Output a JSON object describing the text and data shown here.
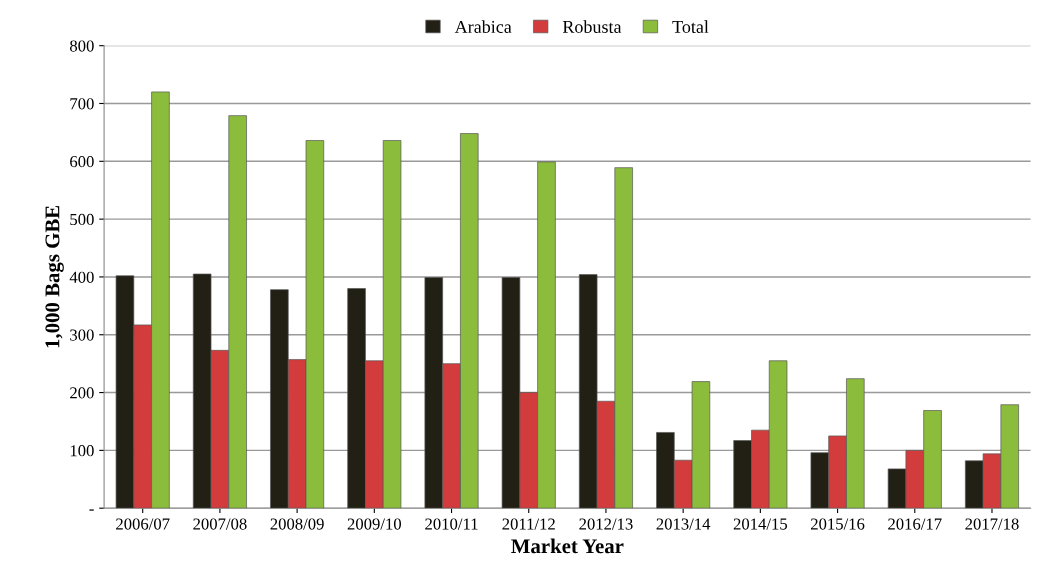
{
  "chart_data": {
    "type": "bar",
    "xlabel": "Market Year",
    "ylabel": "1,000 Bags GBE",
    "categories": [
      "2006/07",
      "2007/08",
      "2008/09",
      "2009/10",
      "2010/11",
      "2011/12",
      "2012/13",
      "2013/14",
      "2014/15",
      "2015/16",
      "2016/17",
      "2017/18"
    ],
    "series": [
      {
        "name": "Arabica",
        "color": "#222014",
        "values": [
          402,
          405,
          378,
          380,
          399,
          399,
          404,
          131,
          117,
          96,
          68,
          82
        ]
      },
      {
        "name": "Robusta",
        "color": "#d33c3c",
        "values": [
          317,
          273,
          257,
          255,
          250,
          200,
          185,
          83,
          135,
          125,
          100,
          94
        ]
      },
      {
        "name": "Total",
        "color": "#8cbc3c",
        "values": [
          720,
          679,
          636,
          636,
          648,
          599,
          589,
          219,
          255,
          224,
          169,
          179
        ]
      }
    ],
    "ylim": [
      0,
      800
    ],
    "yticks": [
      {
        "value": 0,
        "label": "-"
      },
      100,
      200,
      300,
      400,
      500,
      600,
      700,
      800
    ],
    "grid": "y",
    "legend": "top"
  }
}
